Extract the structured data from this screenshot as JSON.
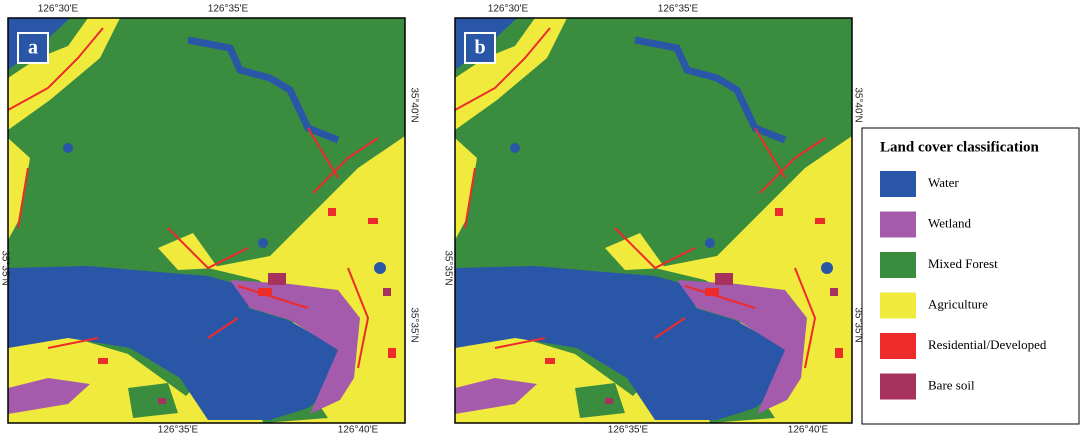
{
  "panels": [
    {
      "label": "a",
      "top_labels": [
        "126°30'E",
        "126°35'E"
      ],
      "bottom_labels": [
        "126°35'E",
        "126°40'E"
      ],
      "left_labels": [
        "35°35'N"
      ],
      "right_labels": [
        "35°40'N",
        "35°35'N"
      ]
    },
    {
      "label": "b",
      "top_labels": [
        "126°30'E",
        "126°35'E"
      ],
      "bottom_labels": [
        "126°35'E",
        "126°40'E"
      ],
      "left_labels": [
        "35°35'N"
      ],
      "right_labels": [
        "35°40'N",
        "35°35'N"
      ]
    }
  ],
  "legend": {
    "title": "Land cover classification",
    "items": [
      {
        "name": "Water",
        "color": "#2a56a8"
      },
      {
        "name": "Wetland",
        "color": "#a55bab"
      },
      {
        "name": "Mixed Forest",
        "color": "#3a8c3f"
      },
      {
        "name": "Agriculture",
        "color": "#f0ea3c"
      },
      {
        "name": "Residential/Developed",
        "color": "#ee2b2b"
      },
      {
        "name": "Bare soil",
        "color": "#a8325e"
      }
    ]
  }
}
